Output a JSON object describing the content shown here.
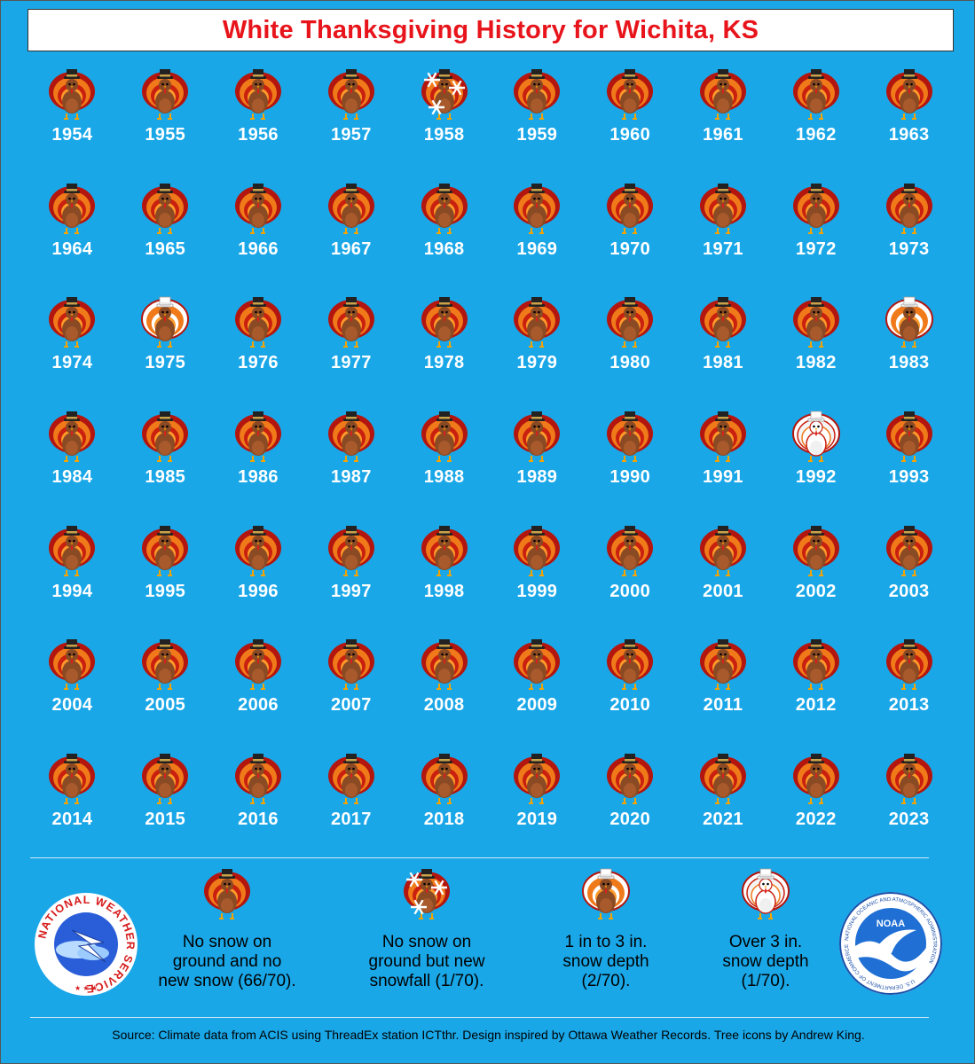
{
  "title": "White Thanksgiving History for Wichita, KS",
  "colors": {
    "background": "#1aa7e8",
    "title_text": "#e8141b",
    "year_text": "#ffffff"
  },
  "categories": {
    "none": {
      "icon": "turkey-icon"
    },
    "new_snow": {
      "icon": "turkey-snowflakes-icon"
    },
    "depth_1_3": {
      "icon": "snow-turkey-icon"
    },
    "depth_over_3": {
      "icon": "snowy-turkey-icon"
    }
  },
  "years": [
    {
      "year": "1954",
      "category": "none"
    },
    {
      "year": "1955",
      "category": "none"
    },
    {
      "year": "1956",
      "category": "none"
    },
    {
      "year": "1957",
      "category": "none"
    },
    {
      "year": "1958",
      "category": "new_snow"
    },
    {
      "year": "1959",
      "category": "none"
    },
    {
      "year": "1960",
      "category": "none"
    },
    {
      "year": "1961",
      "category": "none"
    },
    {
      "year": "1962",
      "category": "none"
    },
    {
      "year": "1963",
      "category": "none"
    },
    {
      "year": "1964",
      "category": "none"
    },
    {
      "year": "1965",
      "category": "none"
    },
    {
      "year": "1966",
      "category": "none"
    },
    {
      "year": "1967",
      "category": "none"
    },
    {
      "year": "1968",
      "category": "none"
    },
    {
      "year": "1969",
      "category": "none"
    },
    {
      "year": "1970",
      "category": "none"
    },
    {
      "year": "1971",
      "category": "none"
    },
    {
      "year": "1972",
      "category": "none"
    },
    {
      "year": "1973",
      "category": "none"
    },
    {
      "year": "1974",
      "category": "none"
    },
    {
      "year": "1975",
      "category": "depth_1_3"
    },
    {
      "year": "1976",
      "category": "none"
    },
    {
      "year": "1977",
      "category": "none"
    },
    {
      "year": "1978",
      "category": "none"
    },
    {
      "year": "1979",
      "category": "none"
    },
    {
      "year": "1980",
      "category": "none"
    },
    {
      "year": "1981",
      "category": "none"
    },
    {
      "year": "1982",
      "category": "none"
    },
    {
      "year": "1983",
      "category": "depth_1_3"
    },
    {
      "year": "1984",
      "category": "none"
    },
    {
      "year": "1985",
      "category": "none"
    },
    {
      "year": "1986",
      "category": "none"
    },
    {
      "year": "1987",
      "category": "none"
    },
    {
      "year": "1988",
      "category": "none"
    },
    {
      "year": "1989",
      "category": "none"
    },
    {
      "year": "1990",
      "category": "none"
    },
    {
      "year": "1991",
      "category": "none"
    },
    {
      "year": "1992",
      "category": "depth_over_3"
    },
    {
      "year": "1993",
      "category": "none"
    },
    {
      "year": "1994",
      "category": "none"
    },
    {
      "year": "1995",
      "category": "none"
    },
    {
      "year": "1996",
      "category": "none"
    },
    {
      "year": "1997",
      "category": "none"
    },
    {
      "year": "1998",
      "category": "none"
    },
    {
      "year": "1999",
      "category": "none"
    },
    {
      "year": "2000",
      "category": "none"
    },
    {
      "year": "2001",
      "category": "none"
    },
    {
      "year": "2002",
      "category": "none"
    },
    {
      "year": "2003",
      "category": "none"
    },
    {
      "year": "2004",
      "category": "none"
    },
    {
      "year": "2005",
      "category": "none"
    },
    {
      "year": "2006",
      "category": "none"
    },
    {
      "year": "2007",
      "category": "none"
    },
    {
      "year": "2008",
      "category": "none"
    },
    {
      "year": "2009",
      "category": "none"
    },
    {
      "year": "2010",
      "category": "none"
    },
    {
      "year": "2011",
      "category": "none"
    },
    {
      "year": "2012",
      "category": "none"
    },
    {
      "year": "2013",
      "category": "none"
    },
    {
      "year": "2014",
      "category": "none"
    },
    {
      "year": "2015",
      "category": "none"
    },
    {
      "year": "2016",
      "category": "none"
    },
    {
      "year": "2017",
      "category": "none"
    },
    {
      "year": "2018",
      "category": "none"
    },
    {
      "year": "2019",
      "category": "none"
    },
    {
      "year": "2020",
      "category": "none"
    },
    {
      "year": "2021",
      "category": "none"
    },
    {
      "year": "2022",
      "category": "none"
    },
    {
      "year": "2023",
      "category": "none"
    }
  ],
  "legend": {
    "none": {
      "line1": "No snow on",
      "line2": "ground and no",
      "line3": "new snow (66/70)."
    },
    "new_snow": {
      "line1": "No snow on",
      "line2": "ground but new",
      "line3": "snowfall (1/70)."
    },
    "depth_1_3": {
      "line1": "1 in to 3 in.",
      "line2": "snow depth",
      "line3": "(2/70)."
    },
    "depth_over_3": {
      "line1": "Over 3 in.",
      "line2": "snow depth",
      "line3": "(1/70)."
    }
  },
  "logos": {
    "nws": {
      "text": "NATIONAL WEATHER SERVICE"
    },
    "noaa": {
      "inner": "NOAA",
      "ring": "NATIONAL OCEANIC AND ATMOSPHERIC ADMINISTRATION",
      "ring_bottom": "U.S. DEPARTMENT OF COMMERCE"
    }
  },
  "source": "Source: Climate data from ACIS using ThreadEx station ICTthr. Design inspired by Ottawa Weather Records. Tree icons by Andrew King."
}
